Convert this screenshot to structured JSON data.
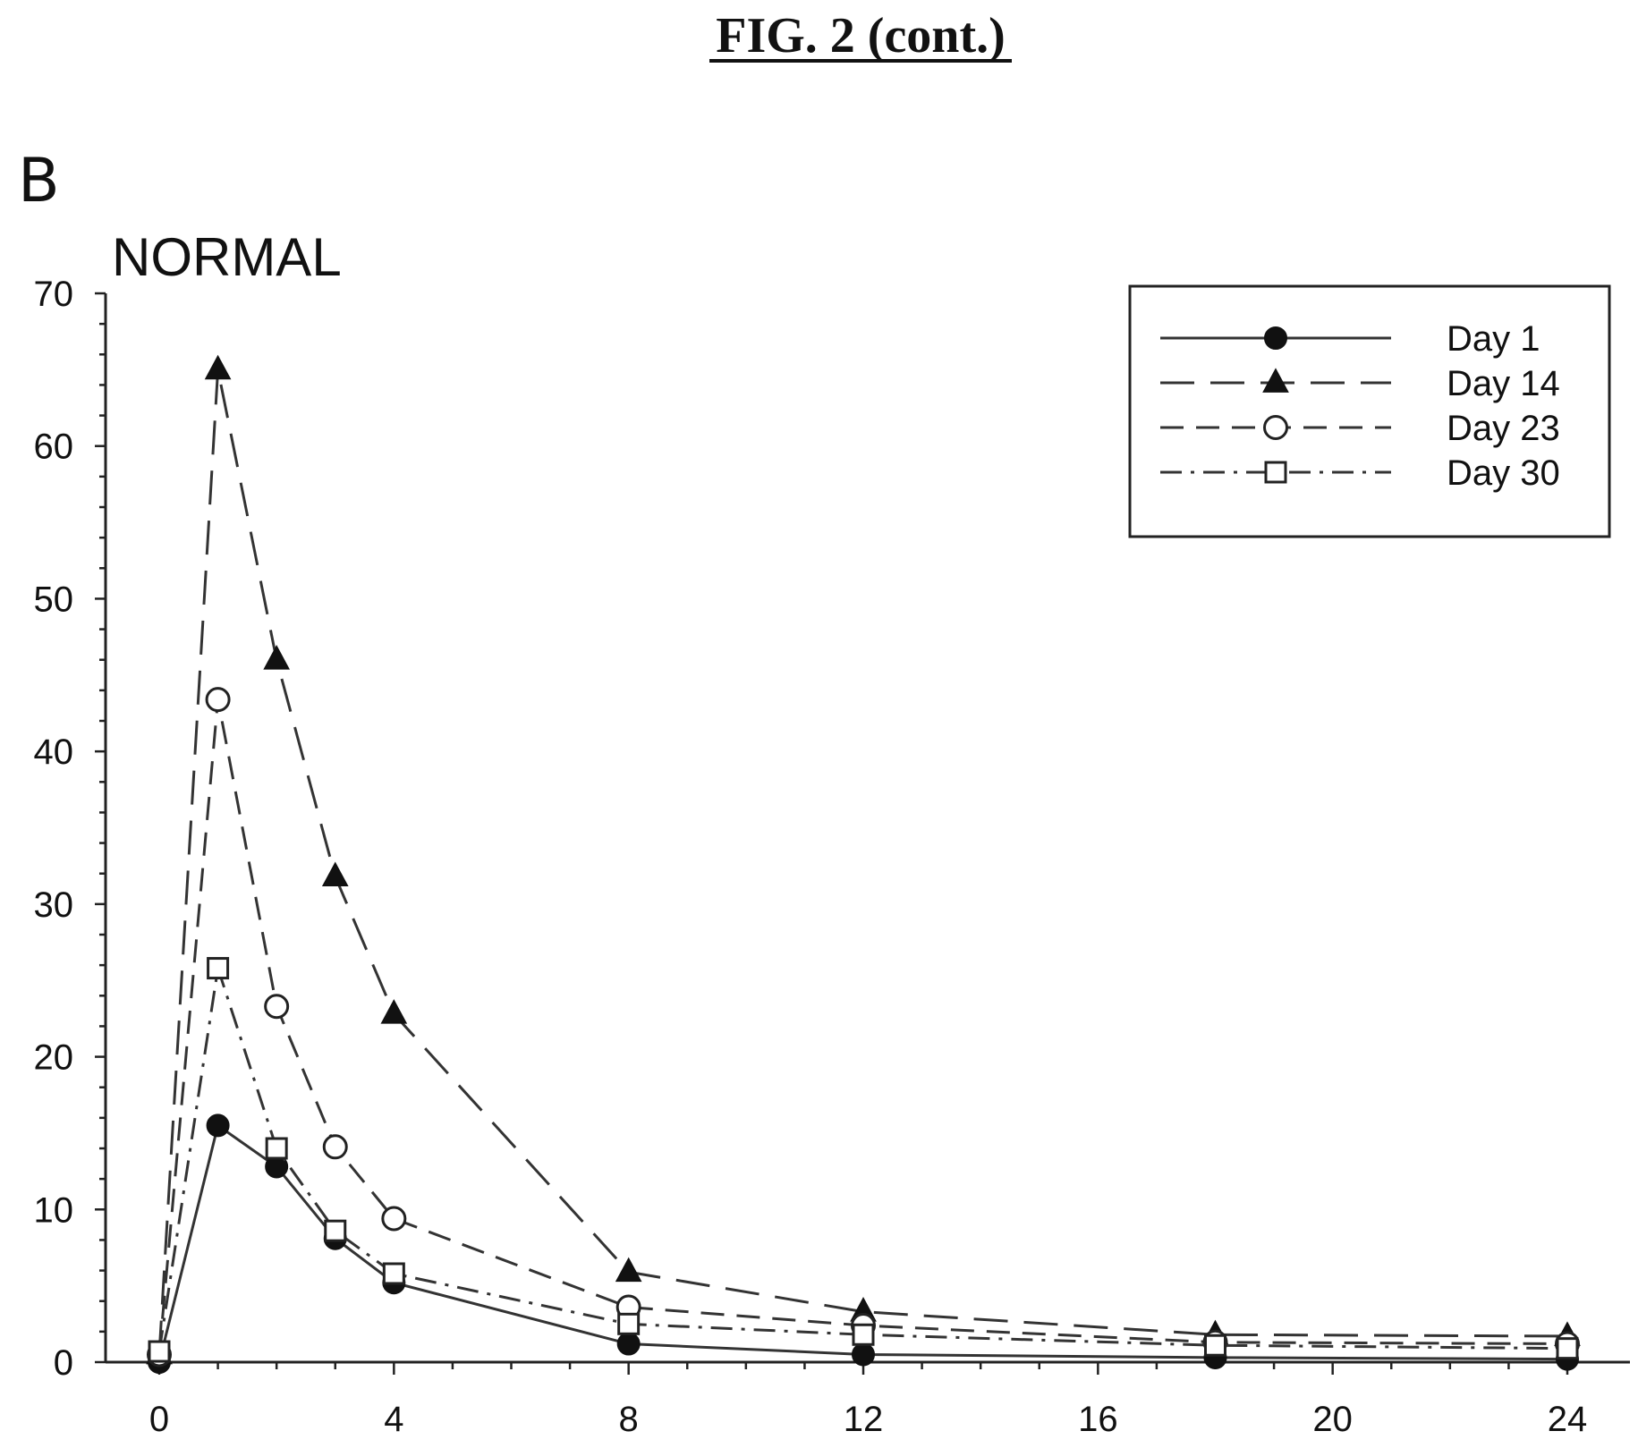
{
  "figure_title": "FIG. 2 (cont.)",
  "panel_letter": "B",
  "chart_data": {
    "type": "line",
    "title": "NORMAL",
    "xlabel": "",
    "ylabel": "",
    "xlim": [
      0,
      24
    ],
    "ylim": [
      0,
      70
    ],
    "x_ticks": [
      0,
      4,
      8,
      12,
      16,
      20,
      24
    ],
    "y_ticks": [
      0,
      10,
      20,
      30,
      40,
      50,
      60,
      70
    ],
    "legend_position": "top-right",
    "grid": false,
    "x": [
      0,
      1,
      2,
      3,
      4,
      8,
      12,
      18,
      24
    ],
    "series": [
      {
        "name": "Day 1",
        "marker": "filled-circle",
        "dash": "solid",
        "values": [
          0,
          15.5,
          12.8,
          8.1,
          5.2,
          1.2,
          0.5,
          0.3,
          0.2
        ]
      },
      {
        "name": "Day 14",
        "marker": "filled-triangle",
        "dash": "long-dash",
        "values": [
          0.5,
          65,
          46,
          31.8,
          22.8,
          5.9,
          3.3,
          1.8,
          1.7
        ]
      },
      {
        "name": "Day 23",
        "marker": "open-circle",
        "dash": "dash",
        "values": [
          0.5,
          43.4,
          23.3,
          14.1,
          9.4,
          3.6,
          2.4,
          1.3,
          1.2
        ]
      },
      {
        "name": "Day 30",
        "marker": "open-square",
        "dash": "dash-dot",
        "values": [
          0.7,
          25.8,
          14,
          8.6,
          5.8,
          2.5,
          1.8,
          1.1,
          0.9
        ]
      }
    ]
  }
}
